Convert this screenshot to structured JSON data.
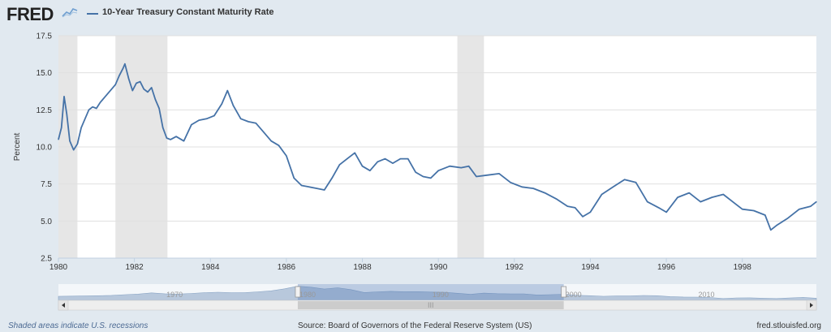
{
  "header": {
    "logo_text": "FRED",
    "logo_icon": "line-chart-icon",
    "series_title": "10-Year Treasury Constant Maturity Rate"
  },
  "footer": {
    "recession_note": "Shaded areas indicate U.S. recessions",
    "source": "Source: Board of Governors of the Federal Reserve System (US)",
    "site": "fred.stlouisfed.org"
  },
  "navigator": {
    "labels": [
      "1970",
      "1980",
      "1990",
      "2000",
      "2010"
    ],
    "range_start": 1980,
    "range_end": 2000,
    "scrollbar_grip": "III"
  },
  "colors": {
    "series": "#4572a7",
    "recession": "#e6e6e6",
    "background": "#e1e9f0"
  },
  "chart_data": {
    "type": "line",
    "title": "",
    "xlabel": "",
    "ylabel": "Percent",
    "xlim": [
      1980.0,
      1999.95
    ],
    "ylim": [
      2.5,
      17.5
    ],
    "x_ticks": [
      "1980",
      "1982",
      "1984",
      "1986",
      "1988",
      "1990",
      "1992",
      "1994",
      "1996",
      "1998"
    ],
    "y_ticks": [
      "2.5",
      "5.0",
      "7.5",
      "10.0",
      "12.5",
      "15.0",
      "17.5"
    ],
    "grid": "horizontal",
    "legend": "top-left",
    "recessions": [
      [
        1980.0,
        1980.5
      ],
      [
        1981.5,
        1982.87
      ],
      [
        1990.5,
        1991.2
      ]
    ],
    "series": [
      {
        "name": "10-Year Treasury Constant Maturity Rate",
        "x": [
          1980.0,
          1980.08,
          1980.15,
          1980.22,
          1980.3,
          1980.4,
          1980.5,
          1980.6,
          1980.7,
          1980.8,
          1980.9,
          1981.0,
          1981.1,
          1981.2,
          1981.3,
          1981.4,
          1981.5,
          1981.6,
          1981.7,
          1981.75,
          1981.85,
          1981.95,
          1982.05,
          1982.15,
          1982.25,
          1982.35,
          1982.45,
          1982.55,
          1982.65,
          1982.75,
          1982.85,
          1982.95,
          1983.1,
          1983.3,
          1983.5,
          1983.7,
          1983.9,
          1984.1,
          1984.3,
          1984.45,
          1984.6,
          1984.8,
          1985.0,
          1985.2,
          1985.4,
          1985.6,
          1985.8,
          1986.0,
          1986.2,
          1986.4,
          1986.6,
          1986.8,
          1987.0,
          1987.2,
          1987.4,
          1987.6,
          1987.8,
          1988.0,
          1988.2,
          1988.4,
          1988.6,
          1988.8,
          1989.0,
          1989.2,
          1989.4,
          1989.6,
          1989.8,
          1990.0,
          1990.3,
          1990.6,
          1990.8,
          1991.0,
          1991.3,
          1991.6,
          1991.9,
          1992.2,
          1992.5,
          1992.8,
          1993.1,
          1993.4,
          1993.6,
          1993.8,
          1994.0,
          1994.3,
          1994.6,
          1994.9,
          1995.2,
          1995.5,
          1995.8,
          1996.0,
          1996.3,
          1996.6,
          1996.9,
          1997.2,
          1997.5,
          1997.8,
          1998.0,
          1998.3,
          1998.6,
          1998.75,
          1998.9,
          1999.2,
          1999.5,
          1999.8,
          1999.95
        ],
        "values": [
          10.5,
          11.3,
          13.4,
          12.2,
          10.4,
          9.8,
          10.2,
          11.3,
          11.9,
          12.5,
          12.7,
          12.6,
          13.0,
          13.3,
          13.6,
          13.9,
          14.2,
          14.8,
          15.3,
          15.6,
          14.6,
          13.8,
          14.3,
          14.4,
          13.9,
          13.7,
          14.0,
          13.2,
          12.6,
          11.3,
          10.6,
          10.5,
          10.7,
          10.4,
          11.5,
          11.8,
          11.9,
          12.1,
          12.9,
          13.8,
          12.8,
          11.9,
          11.7,
          11.6,
          11.0,
          10.4,
          10.1,
          9.4,
          7.9,
          7.4,
          7.3,
          7.2,
          7.1,
          7.9,
          8.8,
          9.2,
          9.6,
          8.7,
          8.4,
          9.0,
          9.2,
          8.9,
          9.2,
          9.2,
          8.3,
          8.0,
          7.9,
          8.4,
          8.7,
          8.6,
          8.7,
          8.0,
          8.1,
          8.2,
          7.6,
          7.3,
          7.2,
          6.9,
          6.5,
          6.0,
          5.9,
          5.3,
          5.6,
          6.8,
          7.3,
          7.8,
          7.6,
          6.3,
          5.9,
          5.6,
          6.6,
          6.9,
          6.3,
          6.6,
          6.8,
          6.2,
          5.8,
          5.7,
          5.4,
          4.4,
          4.7,
          5.2,
          5.8,
          6.0,
          6.3
        ]
      }
    ]
  }
}
